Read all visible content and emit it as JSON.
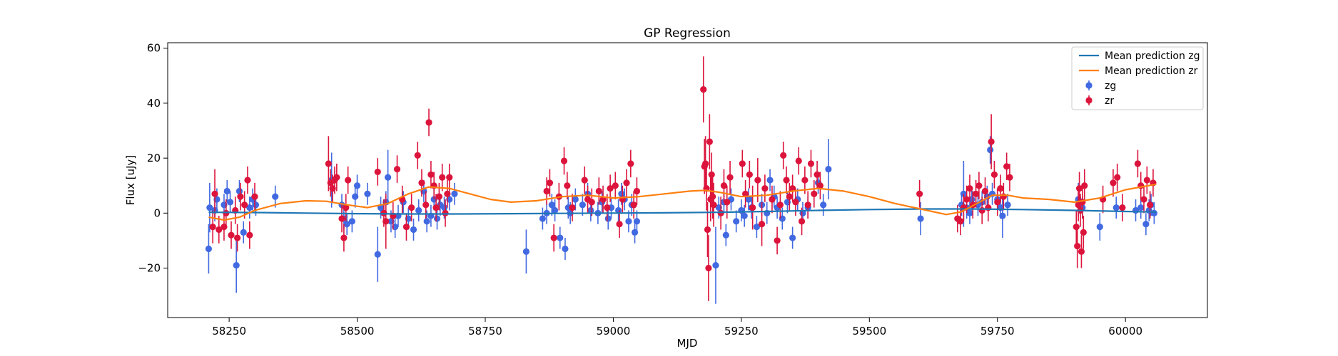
{
  "chart_data": {
    "type": "scatter",
    "title": "GP Regression",
    "xlabel": "MJD",
    "ylabel": "Flux [uJy]",
    "xlim": [
      58130,
      60160
    ],
    "ylim": [
      -38,
      62
    ],
    "xticks": [
      58250,
      58500,
      58750,
      59000,
      59250,
      59500,
      59750,
      60000
    ],
    "yticks": [
      -20,
      0,
      20,
      40,
      60
    ],
    "legend_position": "top-right",
    "grid": false,
    "lines": [
      {
        "name": "Mean prediction zg",
        "color": "#1f77b4",
        "x": [
          58210,
          58300,
          58400,
          58500,
          58600,
          58700,
          58800,
          58900,
          59000,
          59100,
          59200,
          59300,
          59400,
          59500,
          59600,
          59700,
          59800,
          59900,
          60000,
          60060
        ],
        "y": [
          0.3,
          0.2,
          0.0,
          -0.2,
          -0.3,
          -0.3,
          -0.2,
          -0.1,
          0.0,
          0.1,
          0.3,
          0.6,
          1.0,
          1.3,
          1.5,
          1.5,
          1.3,
          1.0,
          0.6,
          0.4
        ]
      },
      {
        "name": "Mean prediction zr",
        "color": "#ff7f0e",
        "x": [
          58210,
          58240,
          58270,
          58300,
          58350,
          58400,
          58440,
          58480,
          58520,
          58560,
          58600,
          58640,
          58680,
          58720,
          58760,
          58800,
          58850,
          58900,
          58950,
          59000,
          59050,
          59100,
          59150,
          59180,
          59210,
          59250,
          59300,
          59350,
          59400,
          59450,
          59500,
          59550,
          59600,
          59650,
          59680,
          59710,
          59740,
          59770,
          59800,
          59850,
          59900,
          59950,
          60000,
          60060
        ],
        "y": [
          -1.5,
          -2.5,
          -1.5,
          1.0,
          3.5,
          4.5,
          4.3,
          3.0,
          2.0,
          3.5,
          7.0,
          9.5,
          9.0,
          7.0,
          5.0,
          4.0,
          4.5,
          6.0,
          6.5,
          5.5,
          6.0,
          7.0,
          8.0,
          8.3,
          7.5,
          6.0,
          6.5,
          8.0,
          9.0,
          8.0,
          6.0,
          3.5,
          1.5,
          -0.5,
          0.5,
          3.5,
          6.5,
          6.5,
          5.5,
          5.0,
          4.0,
          5.5,
          8.5,
          10.5
        ]
      }
    ],
    "series": [
      {
        "name": "zg",
        "color": "#4169e1",
        "x": [
          58210,
          58212,
          58222,
          58226,
          58240,
          58246,
          58252,
          58264,
          58270,
          58278,
          58290,
          58296,
          58302,
          58340,
          58450,
          58470,
          58474,
          58480,
          58490,
          58496,
          58500,
          58520,
          58540,
          58546,
          58556,
          58560,
          58566,
          58574,
          58580,
          58590,
          58600,
          58610,
          58620,
          58630,
          58636,
          58644,
          58650,
          58656,
          58662,
          58670,
          58680,
          58690,
          58862,
          58870,
          58880,
          58886,
          58896,
          58906,
          58912,
          58916,
          58926,
          58940,
          58950,
          58956,
          58970,
          58978,
          58990,
          58996,
          59010,
          59016,
          59022,
          59030,
          59036,
          59042,
          59046,
          58830,
          59200,
          59206,
          59216,
          59220,
          59230,
          59240,
          59250,
          59256,
          59264,
          59270,
          59280,
          59290,
          59300,
          59306,
          59314,
          59320,
          59330,
          59340,
          59350,
          59360,
          59370,
          59380,
          59400,
          59410,
          59420,
          59600,
          59680,
          59684,
          59690,
          59696,
          59700,
          59712,
          59720,
          59730,
          59736,
          59740,
          59750,
          59756,
          59760,
          59770,
          59908,
          59916,
          59950,
          59982,
          60020,
          60030,
          60040,
          60046,
          60050,
          60056
        ],
        "y": [
          -13,
          2,
          1,
          5,
          3,
          8,
          4,
          -19,
          8,
          -7,
          2,
          5,
          3,
          6,
          12,
          3,
          -2,
          -4,
          -3,
          6,
          10,
          7,
          -15,
          2,
          4,
          13,
          -3,
          -5,
          -1,
          4,
          -2,
          -6,
          1,
          8,
          -3,
          -1,
          5,
          -2,
          3,
          2,
          5,
          7,
          -2,
          0,
          3,
          1,
          -9,
          -13,
          2,
          0,
          5,
          3,
          7,
          1,
          0,
          4,
          -2,
          2,
          1,
          7,
          5,
          -3,
          3,
          -7,
          -3,
          -14,
          -19,
          2,
          4,
          -8,
          5,
          -3,
          1,
          -1,
          5,
          2,
          -5,
          3,
          0,
          12,
          6,
          2,
          -2,
          4,
          -9,
          5,
          0,
          2,
          11,
          3,
          16,
          -2,
          3,
          7,
          2,
          0,
          5,
          3,
          4,
          6,
          23,
          7,
          5,
          2,
          -1,
          3,
          5,
          2,
          -5,
          2,
          1,
          2,
          -4,
          1,
          3,
          0
        ],
        "err": [
          9,
          9,
          4,
          4,
          4,
          4,
          4,
          10,
          4,
          4,
          4,
          4,
          4,
          4,
          10,
          4,
          4,
          4,
          4,
          4,
          4,
          4,
          10,
          4,
          4,
          10,
          4,
          4,
          4,
          4,
          4,
          4,
          4,
          4,
          4,
          4,
          4,
          4,
          4,
          4,
          4,
          4,
          4,
          4,
          4,
          4,
          4,
          4,
          4,
          4,
          4,
          4,
          4,
          4,
          4,
          4,
          4,
          4,
          4,
          4,
          4,
          4,
          4,
          4,
          4,
          8,
          14,
          4,
          4,
          4,
          4,
          4,
          4,
          4,
          4,
          4,
          4,
          4,
          4,
          4,
          4,
          4,
          4,
          4,
          4,
          4,
          4,
          4,
          4,
          4,
          11,
          6,
          4,
          12,
          4,
          4,
          4,
          4,
          4,
          4,
          5,
          4,
          4,
          4,
          8,
          4,
          6,
          4,
          5,
          4,
          4,
          4,
          4,
          4,
          4,
          4
        ]
      },
      {
        "name": "zr",
        "color": "#dc143c",
        "x": [
          58218,
          58222,
          58230,
          58240,
          58244,
          58254,
          58262,
          58266,
          58272,
          58280,
          58286,
          58290,
          58300,
          58444,
          58448,
          58452,
          58456,
          58460,
          58470,
          58474,
          58478,
          58482,
          58540,
          58552,
          58556,
          58570,
          58578,
          58588,
          58596,
          58606,
          58618,
          58626,
          58634,
          58640,
          58644,
          58650,
          58654,
          58660,
          58666,
          58672,
          58676,
          58680,
          58870,
          58876,
          58884,
          58894,
          58904,
          58910,
          58920,
          58944,
          58950,
          58958,
          58972,
          58980,
          58988,
          58994,
          59004,
          59012,
          59018,
          59026,
          59034,
          59040,
          59046,
          59176,
          59178,
          59180,
          59182,
          59184,
          59186,
          59188,
          59190,
          59192,
          59194,
          59196,
          59210,
          59216,
          59222,
          59228,
          59252,
          59258,
          59266,
          59272,
          59282,
          59290,
          59296,
          59310,
          59320,
          59326,
          59332,
          59338,
          59344,
          59350,
          59356,
          59362,
          59368,
          59374,
          59380,
          59386,
          59392,
          59398,
          59404,
          59598,
          59672,
          59678,
          59684,
          59690,
          59696,
          59702,
          59708,
          59714,
          59720,
          59726,
          59732,
          59738,
          59744,
          59750,
          59756,
          59762,
          59768,
          59774,
          59904,
          59906,
          59908,
          59910,
          59912,
          59914,
          59916,
          59918,
          59920,
          59956,
          59976,
          59984,
          59994,
          60024,
          60030,
          60036,
          60042,
          60048,
          60054
        ],
        "y": [
          -5,
          7,
          -6,
          -5,
          0,
          -8,
          1,
          -9,
          6,
          3,
          12,
          -8,
          6,
          18,
          11,
          9,
          12,
          13,
          -2,
          -9,
          2,
          12,
          15,
          0,
          -3,
          -1,
          16,
          5,
          -5,
          2,
          21,
          11,
          3,
          33,
          14,
          10,
          2,
          6,
          13,
          0,
          7,
          13,
          8,
          11,
          -9,
          6,
          19,
          10,
          2,
          12,
          5,
          4,
          8,
          5,
          2,
          9,
          10,
          -4,
          5,
          11,
          18,
          3,
          8,
          45,
          17,
          18,
          9,
          -6,
          -20,
          26,
          5,
          14,
          6,
          3,
          0,
          10,
          4,
          13,
          18,
          7,
          14,
          2,
          12,
          -4,
          9,
          5,
          -10,
          3,
          21,
          12,
          6,
          9,
          4,
          19,
          -3,
          12,
          3,
          18,
          7,
          14,
          10,
          7,
          -2,
          -3,
          2,
          5,
          9,
          3,
          7,
          10,
          1,
          8,
          2,
          26,
          14,
          4,
          9,
          6,
          17,
          13,
          -5,
          -12,
          3,
          9,
          1,
          -14,
          4,
          -7,
          10,
          5,
          11,
          13,
          2,
          18,
          10,
          5,
          12,
          3,
          11
        ],
        "err": [
          6,
          9,
          5,
          5,
          5,
          5,
          5,
          5,
          5,
          5,
          5,
          5,
          5,
          10,
          5,
          5,
          5,
          5,
          5,
          5,
          5,
          5,
          5,
          5,
          10,
          5,
          5,
          5,
          5,
          5,
          5,
          5,
          5,
          5,
          5,
          5,
          5,
          5,
          5,
          5,
          5,
          5,
          5,
          5,
          5,
          5,
          5,
          5,
          5,
          5,
          5,
          5,
          5,
          5,
          5,
          5,
          5,
          5,
          5,
          5,
          5,
          5,
          5,
          12,
          10,
          10,
          8,
          10,
          12,
          10,
          8,
          8,
          8,
          8,
          6,
          6,
          6,
          6,
          5,
          5,
          5,
          8,
          8,
          8,
          5,
          5,
          5,
          5,
          5,
          5,
          5,
          5,
          5,
          5,
          5,
          5,
          5,
          5,
          5,
          5,
          5,
          5,
          5,
          5,
          5,
          5,
          5,
          5,
          5,
          5,
          5,
          5,
          5,
          10,
          5,
          5,
          5,
          5,
          5,
          5,
          6,
          8,
          6,
          6,
          6,
          6,
          6,
          6,
          6,
          5,
          5,
          5,
          5,
          5,
          5,
          5,
          5,
          5,
          5
        ]
      }
    ]
  }
}
